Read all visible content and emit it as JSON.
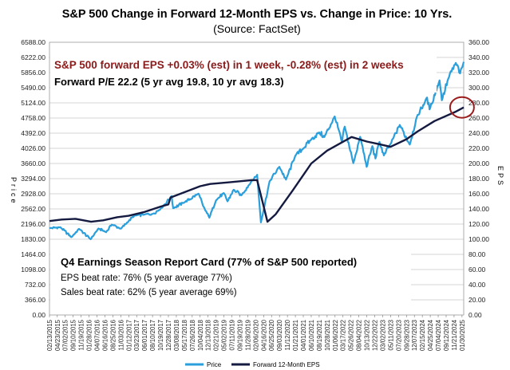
{
  "chart_data": {
    "type": "line",
    "title": "S&P 500 Change in Forward 12-Month EPS vs. Change in Price: 10 Yrs.",
    "subtitle": "(Source: FactSet)",
    "ylabel_left": "Price",
    "ylabel_right": "EPS",
    "ylim_left": [
      0,
      6588
    ],
    "ylim_right": [
      0,
      360
    ],
    "yticks_left": [
      "0.00",
      "366.00",
      "732.00",
      "1098.00",
      "1464.00",
      "1830.00",
      "2196.00",
      "2562.00",
      "2928.00",
      "3294.00",
      "3660.00",
      "4026.00",
      "4392.00",
      "4758.00",
      "5124.00",
      "5490.00",
      "5856.00",
      "6222.00",
      "6588.00"
    ],
    "yticks_right": [
      "0.00",
      "20.00",
      "40.00",
      "60.00",
      "80.00",
      "100.00",
      "120.00",
      "140.00",
      "160.00",
      "180.00",
      "200.00",
      "220.00",
      "240.00",
      "260.00",
      "280.00",
      "300.00",
      "320.00",
      "340.00",
      "360.00"
    ],
    "xticks": [
      "02/13/2015",
      "04/23/2015",
      "07/02/2015",
      "09/10/2015",
      "11/19/2015",
      "01/28/2016",
      "04/07/2016",
      "06/16/2016",
      "08/25/2016",
      "11/03/2016",
      "01/12/2017",
      "03/23/2017",
      "06/01/2017",
      "08/10/2017",
      "10/19/2017",
      "12/28/2017",
      "03/08/2018",
      "05/17/2018",
      "07/26/2018",
      "10/04/2018",
      "12/13/2018",
      "02/21/2019",
      "05/02/2019",
      "07/11/2019",
      "09/19/2019",
      "11/28/2019",
      "02/06/2020",
      "04/16/2020",
      "06/25/2020",
      "09/03/2020",
      "11/12/2020",
      "01/21/2021",
      "04/01/2021",
      "06/10/2021",
      "08/19/2021",
      "10/28/2021",
      "01/06/2022",
      "03/17/2022",
      "05/26/2022",
      "08/04/2022",
      "10/13/2022",
      "12/22/2022",
      "03/02/2023",
      "05/11/2023",
      "07/20/2023",
      "09/28/2023",
      "12/07/2023",
      "02/15/2024",
      "04/25/2024",
      "07/04/2024",
      "09/12/2024",
      "11/21/2024",
      "01/30/2025"
    ],
    "x_range": [
      "2015-02-13",
      "2025-02-14"
    ],
    "grid": true,
    "legend_position": "bottom",
    "series": [
      {
        "name": "Price",
        "axis": "left",
        "color": "#2a9fdb",
        "points": [
          [
            "2015-02-13",
            2096
          ],
          [
            "2015-05-20",
            2120
          ],
          [
            "2015-08-25",
            1880
          ],
          [
            "2015-11-01",
            2080
          ],
          [
            "2016-02-11",
            1830
          ],
          [
            "2016-04-20",
            2090
          ],
          [
            "2016-06-27",
            2000
          ],
          [
            "2016-08-15",
            2185
          ],
          [
            "2016-11-04",
            2085
          ],
          [
            "2017-01-12",
            2270
          ],
          [
            "2017-03-01",
            2395
          ],
          [
            "2017-06-01",
            2430
          ],
          [
            "2017-08-10",
            2440
          ],
          [
            "2017-10-19",
            2560
          ],
          [
            "2018-01-26",
            2872
          ],
          [
            "2018-02-08",
            2580
          ],
          [
            "2018-05-17",
            2720
          ],
          [
            "2018-09-20",
            2930
          ],
          [
            "2018-10-29",
            2640
          ],
          [
            "2018-12-24",
            2350
          ],
          [
            "2019-02-21",
            2770
          ],
          [
            "2019-04-30",
            2945
          ],
          [
            "2019-06-03",
            2745
          ],
          [
            "2019-07-26",
            3025
          ],
          [
            "2019-10-02",
            2890
          ],
          [
            "2019-12-31",
            3230
          ],
          [
            "2020-02-19",
            3386
          ],
          [
            "2020-03-23",
            2237
          ],
          [
            "2020-06-08",
            3230
          ],
          [
            "2020-09-02",
            3580
          ],
          [
            "2020-10-30",
            3270
          ],
          [
            "2021-01-21",
            3850
          ],
          [
            "2021-04-01",
            4020
          ],
          [
            "2021-06-10",
            4240
          ],
          [
            "2021-08-19",
            4410
          ],
          [
            "2021-10-04",
            4300
          ],
          [
            "2022-01-03",
            4796
          ],
          [
            "2022-03-08",
            4170
          ],
          [
            "2022-04-01",
            4550
          ],
          [
            "2022-06-16",
            3667
          ],
          [
            "2022-08-16",
            4305
          ],
          [
            "2022-10-12",
            3577
          ],
          [
            "2022-12-01",
            4080
          ],
          [
            "2022-12-28",
            3780
          ],
          [
            "2023-02-02",
            4180
          ],
          [
            "2023-03-13",
            3855
          ],
          [
            "2023-05-11",
            4130
          ],
          [
            "2023-07-31",
            4590
          ],
          [
            "2023-10-27",
            4117
          ],
          [
            "2023-12-28",
            4780
          ],
          [
            "2024-03-28",
            5254
          ],
          [
            "2024-04-19",
            4967
          ],
          [
            "2024-07-16",
            5667
          ],
          [
            "2024-08-05",
            5186
          ],
          [
            "2024-10-01",
            5710
          ],
          [
            "2024-12-06",
            6090
          ],
          [
            "2025-01-13",
            5836
          ],
          [
            "2025-02-14",
            6115
          ]
        ]
      },
      {
        "name": "Forward 12-Month EPS",
        "axis": "right",
        "color": "#141a40",
        "points": [
          [
            "2015-02-13",
            124
          ],
          [
            "2015-06-01",
            126
          ],
          [
            "2015-10-01",
            127
          ],
          [
            "2016-02-15",
            123
          ],
          [
            "2016-06-01",
            125
          ],
          [
            "2016-10-01",
            129
          ],
          [
            "2017-01-12",
            131
          ],
          [
            "2017-06-01",
            136
          ],
          [
            "2017-10-19",
            143
          ],
          [
            "2017-12-28",
            146
          ],
          [
            "2018-01-15",
            155
          ],
          [
            "2018-05-17",
            162
          ],
          [
            "2018-10-04",
            170
          ],
          [
            "2019-01-01",
            173
          ],
          [
            "2019-06-01",
            175
          ],
          [
            "2019-12-31",
            178
          ],
          [
            "2020-02-19",
            178
          ],
          [
            "2020-05-20",
            123
          ],
          [
            "2020-08-01",
            133
          ],
          [
            "2020-12-31",
            165
          ],
          [
            "2021-06-10",
            200
          ],
          [
            "2021-10-28",
            217
          ],
          [
            "2022-06-01",
            235
          ],
          [
            "2022-10-13",
            229
          ],
          [
            "2023-01-15",
            226
          ],
          [
            "2023-05-11",
            222
          ],
          [
            "2023-09-28",
            232
          ],
          [
            "2024-01-01",
            242
          ],
          [
            "2024-06-01",
            256
          ],
          [
            "2024-12-01",
            268
          ],
          [
            "2025-02-14",
            274
          ]
        ]
      }
    ],
    "annotations": [
      {
        "text": "S&P 500 forward EPS +0.03% (est) in 1 week, -0.28% (est) in 2 weeks",
        "color": "#8b1a1a"
      },
      {
        "text": "Forward P/E 22.2 (5 yr avg 19.8, 10 yr avg 18.3)",
        "color": "#000000"
      },
      {
        "text": "Q4 Earnings Season Report Card (77% of S&P 500 reported)",
        "color": "#000000"
      },
      {
        "text": "EPS beat rate: 76% (5 year average 77%)",
        "color": "#000000"
      },
      {
        "text": "Sales beat rate: 62% (5 year average 69%)",
        "color": "#000000"
      }
    ],
    "highlight": {
      "description": "circle around latest EPS value",
      "date": "2025-01-30",
      "value_right": 274,
      "color": "#9b1c1c"
    }
  }
}
